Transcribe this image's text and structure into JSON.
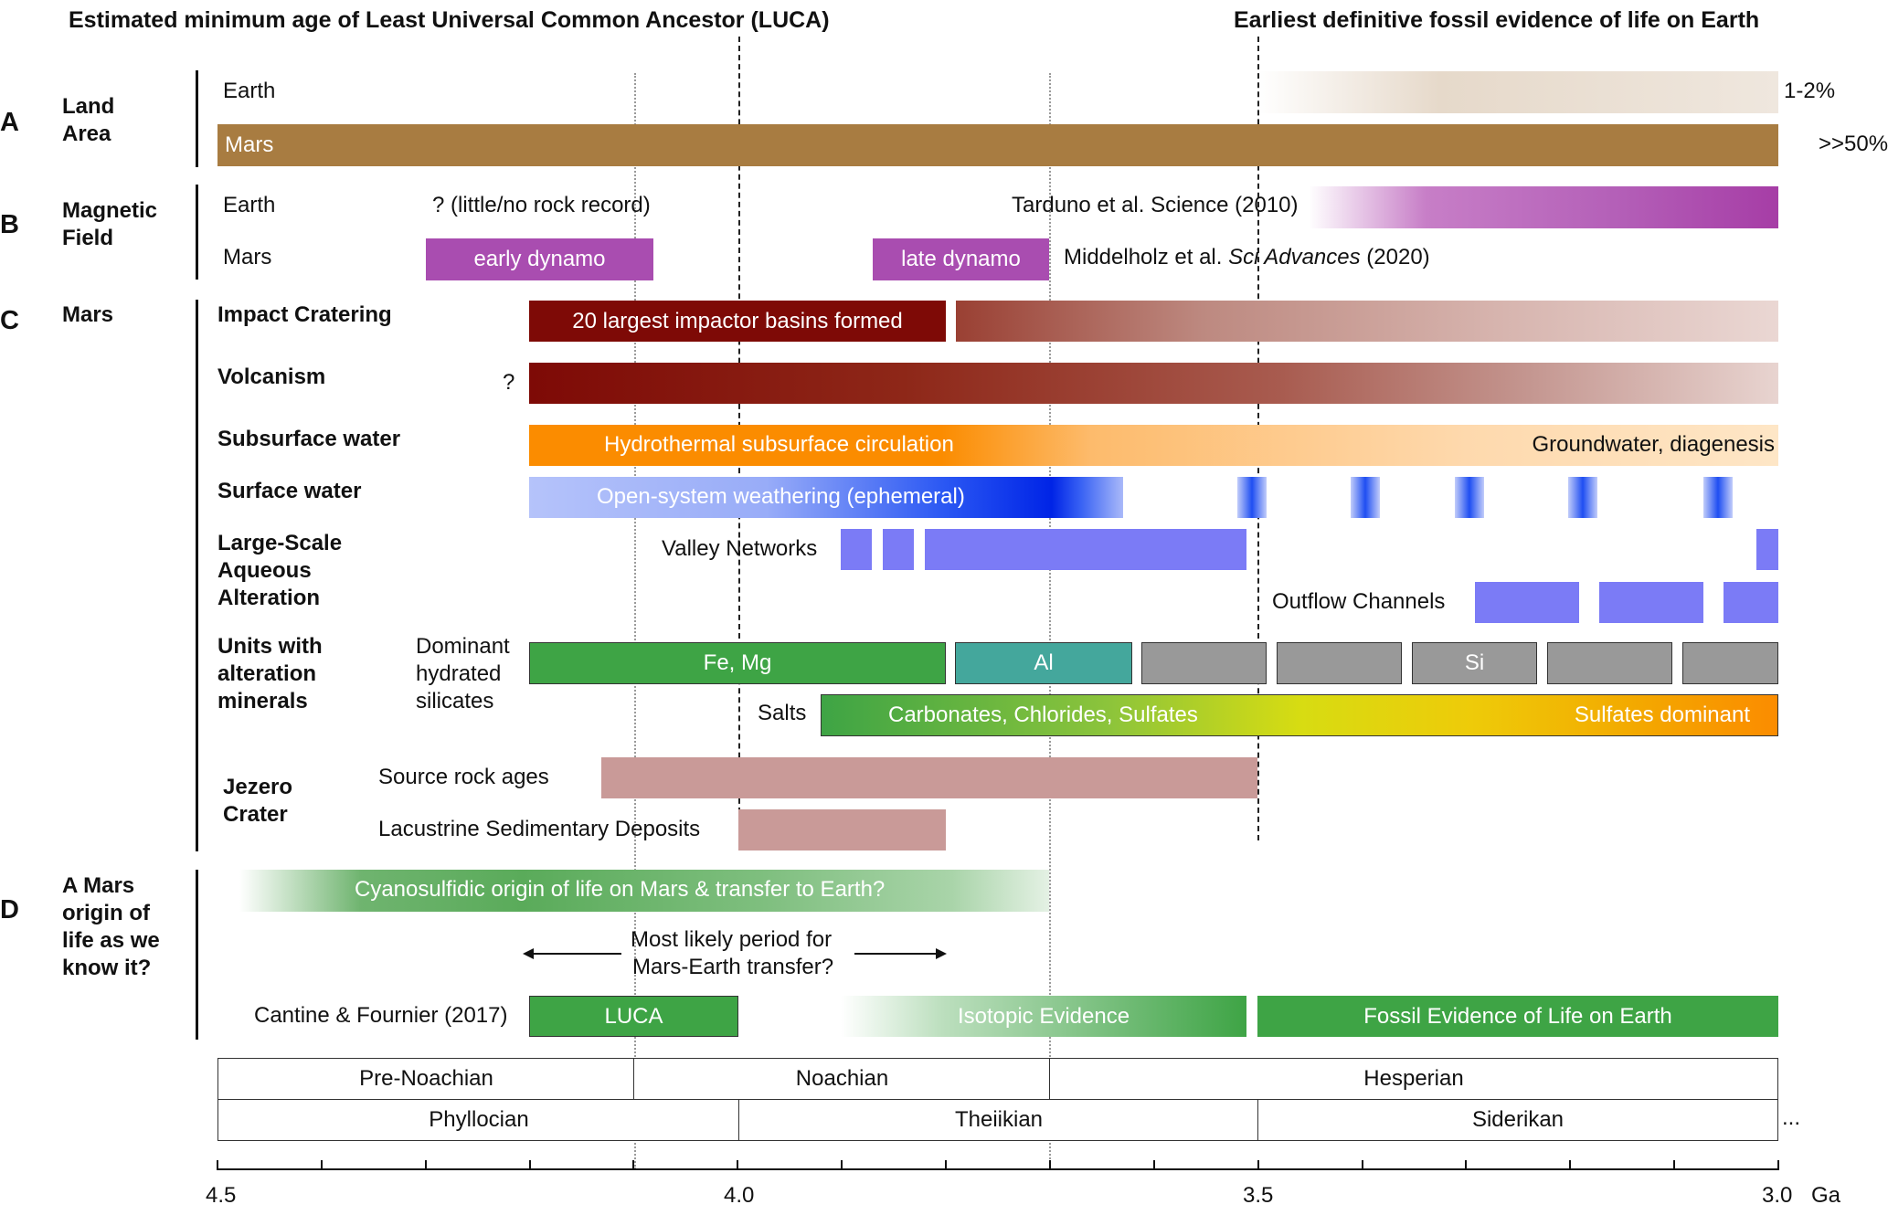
{
  "header": {
    "luca_label": "Estimated minimum age of Least Universal Common Ancestor (LUCA)",
    "fossil_label": "Earliest definitive fossil evidence of life on Earth"
  },
  "panel_a": {
    "letter": "A",
    "title_line1": "Land",
    "title_line2": "Area",
    "earth_label": "Earth",
    "mars_label": "Mars",
    "earth_value": "1-2%",
    "mars_value": ">>50%"
  },
  "panel_b": {
    "letter": "B",
    "title_line1": "Magnetic",
    "title_line2": "Field",
    "earth_label": "Earth",
    "mars_label": "Mars",
    "no_record": "? (little/no rock record)",
    "tarduno_ref": "Tarduno et al. Science (2010)",
    "early_dynamo": "early dynamo",
    "late_dynamo": "late dynamo",
    "middelholz_pre": "Middelholz et al.",
    "middelholz_journal": "Sci Advances",
    "middelholz_year": "(2020)"
  },
  "panel_c": {
    "letter": "C",
    "title": "Mars",
    "impact_title": "Impact Cratering",
    "impact_bar": "20 largest impactor basins formed",
    "volcanism_title": "Volcanism",
    "volcanism_q": "?",
    "subsurface_title": "Subsurface water",
    "hydrothermal": "Hydrothermal subsurface circulation",
    "groundwater": "Groundwater, diagenesis",
    "surface_title": "Surface water",
    "open_system": "Open-system weathering (ephemeral)",
    "aqueous_l1": "Large-Scale",
    "aqueous_l2": "Aqueous",
    "aqueous_l3": "Alteration",
    "valley_networks": "Valley Networks",
    "outflow_channels": "Outflow Channels",
    "units_l1": "Units with",
    "units_l2": "alteration",
    "units_l3": "minerals",
    "dominant_l1": "Dominant",
    "dominant_l2": "hydrated",
    "dominant_l3": "silicates",
    "fe_mg": "Fe, Mg",
    "al": "Al",
    "si": "Si",
    "salts": "Salts",
    "carbonates": "Carbonates, Chlorides, Sulfates",
    "sulfates_dominant": "Sulfates dominant",
    "jezero_l1": "Jezero",
    "jezero_l2": "Crater",
    "source_rock": "Source rock ages",
    "lacustrine": "Lacustrine Sedimentary Deposits"
  },
  "panel_d": {
    "letter": "D",
    "title_l1": "A Mars",
    "title_l2": "origin of",
    "title_l3": "life as we",
    "title_l4": "know it?",
    "cyanosulfidic": "Cyanosulfidic origin of life on Mars & transfer to Earth?",
    "likely_l1": "Most likely period for",
    "likely_l2": "Mars-Earth transfer?",
    "cantine": "Cantine & Fournier (2017)",
    "luca": "LUCA",
    "isotopic": "Isotopic Evidence",
    "fossil": "Fossil Evidence of Life on Earth"
  },
  "periods": {
    "row1": [
      "Pre-Noachian",
      "Noachian",
      "Hesperian"
    ],
    "row2": [
      "Phyllocian",
      "Theiikian",
      "Siderikan"
    ],
    "ellipsis": "..."
  },
  "axis": {
    "ticks": [
      "4.5",
      "4.0",
      "3.5",
      "3.0"
    ],
    "unit": "Ga"
  },
  "colors": {
    "mars_land": "#a87c41",
    "dynamo": "#a94db0",
    "impact": "#7e0a06",
    "hydrothermal": "#fb8c00",
    "surface_water": "#1a4df2",
    "aqueous": "#7b7bf6",
    "fe_mg": "#3ea445",
    "al": "#44a79c",
    "grey_unit": "#999999",
    "jezero": "#c99a98",
    "luca": "#3ea445"
  }
}
